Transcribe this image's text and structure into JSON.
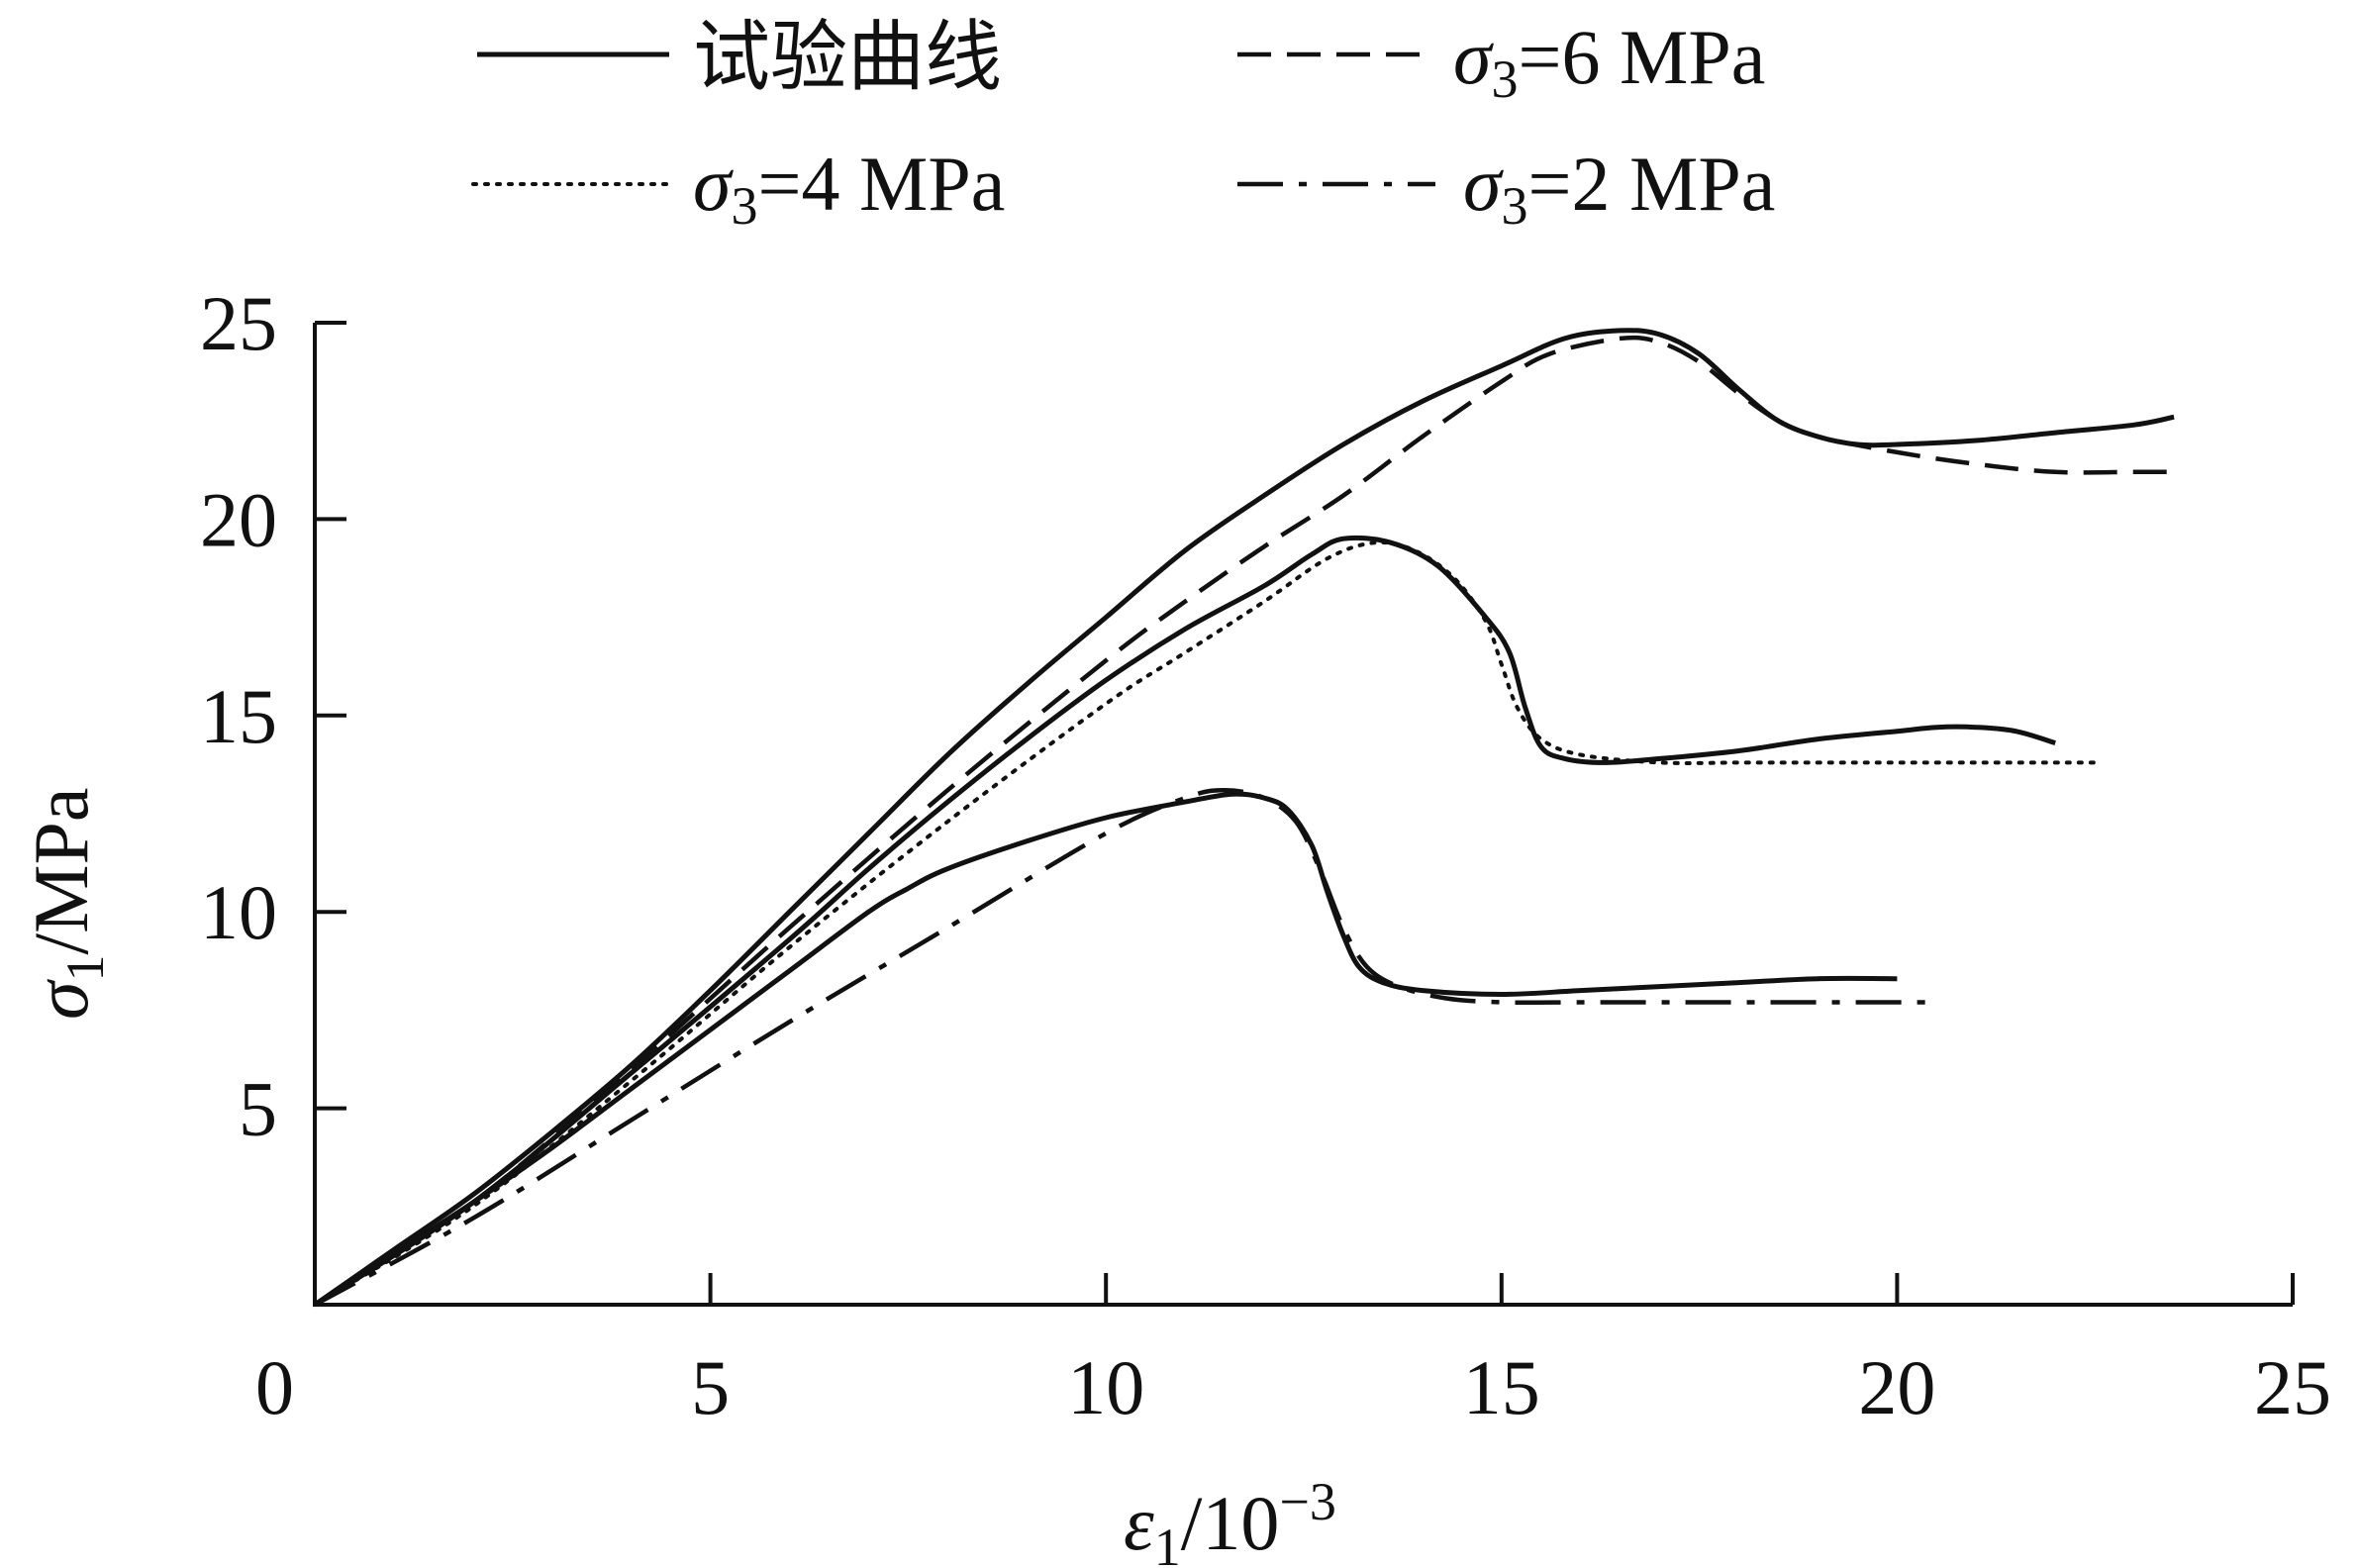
{
  "chart_data": {
    "type": "line",
    "xlim": [
      0,
      25
    ],
    "ylim": [
      0,
      25
    ],
    "x_ticks": [
      0,
      5,
      10,
      15,
      20,
      25
    ],
    "y_ticks": [
      5,
      10,
      15,
      20,
      25
    ],
    "grid": false,
    "legend_position": "top",
    "xlabel": {
      "symbol": "ε",
      "sub": "1",
      "unit": "/10",
      "sup": "−3"
    },
    "ylabel": {
      "symbol": "σ",
      "sub": "1",
      "unit": "/MPa"
    },
    "legend": [
      {
        "key": "test",
        "text": "试验曲线",
        "style": "solid"
      },
      {
        "key": "s6",
        "symbol": "σ",
        "sub": "3",
        "rest": "=6 MPa",
        "style": "dashed"
      },
      {
        "key": "s4",
        "symbol": "σ",
        "sub": "3",
        "rest": "=4 MPa",
        "style": "dotted"
      },
      {
        "key": "s2",
        "symbol": "σ",
        "sub": "3",
        "rest": "=2 MPa",
        "style": "dashdot"
      }
    ],
    "series": [
      {
        "legend_key": "test",
        "style": "solid",
        "points": [
          [
            0,
            0
          ],
          [
            1,
            1.4
          ],
          [
            2,
            2.8
          ],
          [
            3,
            4.4
          ],
          [
            4,
            6.1
          ],
          [
            5,
            8.0
          ],
          [
            6,
            10.0
          ],
          [
            7,
            12.0
          ],
          [
            8,
            14.0
          ],
          [
            9,
            15.8
          ],
          [
            10,
            17.5
          ],
          [
            11,
            19.2
          ],
          [
            12,
            20.6
          ],
          [
            13,
            21.9
          ],
          [
            14,
            23.0
          ],
          [
            15,
            23.9
          ],
          [
            15.8,
            24.6
          ],
          [
            16.5,
            24.8
          ],
          [
            17,
            24.7
          ],
          [
            17.5,
            24.2
          ],
          [
            18,
            23.3
          ],
          [
            18.5,
            22.5
          ],
          [
            19,
            22.1
          ],
          [
            19.5,
            21.9
          ],
          [
            20,
            21.9
          ],
          [
            21,
            22.0
          ],
          [
            22,
            22.2
          ],
          [
            23,
            22.4
          ],
          [
            23.5,
            22.6
          ]
        ]
      },
      {
        "legend_key": "s6",
        "style": "dashed",
        "points": [
          [
            0,
            0
          ],
          [
            2,
            2.6
          ],
          [
            4,
            6.0
          ],
          [
            6,
            9.6
          ],
          [
            8,
            13.1
          ],
          [
            10,
            16.4
          ],
          [
            11,
            17.9
          ],
          [
            12,
            19.3
          ],
          [
            13,
            20.6
          ],
          [
            14,
            22.1
          ],
          [
            15,
            23.5
          ],
          [
            15.6,
            24.2
          ],
          [
            16.5,
            24.6
          ],
          [
            17,
            24.5
          ],
          [
            17.5,
            24.0
          ],
          [
            18,
            23.2
          ],
          [
            18.5,
            22.5
          ],
          [
            19,
            22.1
          ],
          [
            20,
            21.7
          ],
          [
            21,
            21.4
          ],
          [
            22,
            21.2
          ],
          [
            23,
            21.2
          ],
          [
            23.5,
            21.2
          ]
        ]
      },
      {
        "legend_key": "test",
        "style": "solid",
        "points": [
          [
            0,
            0
          ],
          [
            2,
            2.6
          ],
          [
            4,
            5.9
          ],
          [
            6,
            9.3
          ],
          [
            7,
            11.1
          ],
          [
            8,
            12.8
          ],
          [
            9,
            14.4
          ],
          [
            10,
            15.9
          ],
          [
            11,
            17.2
          ],
          [
            12,
            18.3
          ],
          [
            12.6,
            19.1
          ],
          [
            13,
            19.5
          ],
          [
            13.6,
            19.4
          ],
          [
            14.2,
            18.8
          ],
          [
            14.8,
            17.5
          ],
          [
            15.1,
            16.6
          ],
          [
            15.3,
            15.2
          ],
          [
            15.5,
            14.2
          ],
          [
            15.8,
            13.9
          ],
          [
            16.3,
            13.8
          ],
          [
            17,
            13.9
          ],
          [
            18,
            14.1
          ],
          [
            19,
            14.4
          ],
          [
            20,
            14.6
          ],
          [
            20.5,
            14.7
          ],
          [
            21,
            14.7
          ],
          [
            21.5,
            14.6
          ],
          [
            22,
            14.3
          ]
        ]
      },
      {
        "legend_key": "s4",
        "style": "dotted",
        "points": [
          [
            0,
            0
          ],
          [
            2,
            2.5
          ],
          [
            4,
            5.7
          ],
          [
            6,
            9.1
          ],
          [
            8,
            12.3
          ],
          [
            10,
            15.3
          ],
          [
            11,
            16.6
          ],
          [
            12,
            17.9
          ],
          [
            12.8,
            19.0
          ],
          [
            13.4,
            19.4
          ],
          [
            13.9,
            19.2
          ],
          [
            14.4,
            18.5
          ],
          [
            14.8,
            17.4
          ],
          [
            15,
            16.3
          ],
          [
            15.2,
            15.2
          ],
          [
            15.5,
            14.4
          ],
          [
            16,
            14.0
          ],
          [
            17,
            13.8
          ],
          [
            18,
            13.8
          ],
          [
            19,
            13.8
          ],
          [
            20,
            13.8
          ],
          [
            21,
            13.8
          ],
          [
            22,
            13.8
          ],
          [
            22.5,
            13.8
          ]
        ]
      },
      {
        "legend_key": "test",
        "style": "solid",
        "points": [
          [
            0,
            0
          ],
          [
            1,
            1.3
          ],
          [
            2,
            2.6
          ],
          [
            3,
            4.0
          ],
          [
            4,
            5.5
          ],
          [
            5,
            7.0
          ],
          [
            6,
            8.5
          ],
          [
            7,
            10.0
          ],
          [
            7.5,
            10.6
          ],
          [
            8,
            11.1
          ],
          [
            9,
            11.8
          ],
          [
            10,
            12.4
          ],
          [
            11,
            12.8
          ],
          [
            11.6,
            13.0
          ],
          [
            12,
            12.9
          ],
          [
            12.3,
            12.6
          ],
          [
            12.6,
            11.7
          ],
          [
            12.8,
            10.5
          ],
          [
            13,
            9.4
          ],
          [
            13.2,
            8.6
          ],
          [
            13.5,
            8.2
          ],
          [
            14,
            8.0
          ],
          [
            15,
            7.9
          ],
          [
            16,
            8.0
          ],
          [
            17,
            8.1
          ],
          [
            18,
            8.2
          ],
          [
            19,
            8.3
          ],
          [
            20,
            8.3
          ]
        ]
      },
      {
        "legend_key": "s2",
        "style": "dashdot",
        "points": [
          [
            0,
            0
          ],
          [
            2,
            2.2
          ],
          [
            4,
            4.7
          ],
          [
            6,
            7.2
          ],
          [
            8,
            9.6
          ],
          [
            10,
            12.0
          ],
          [
            11,
            12.9
          ],
          [
            11.5,
            13.1
          ],
          [
            12,
            12.9
          ],
          [
            12.4,
            12.3
          ],
          [
            12.7,
            11.1
          ],
          [
            13,
            9.6
          ],
          [
            13.3,
            8.6
          ],
          [
            13.7,
            8.1
          ],
          [
            14.3,
            7.8
          ],
          [
            15,
            7.7
          ],
          [
            16,
            7.7
          ],
          [
            17,
            7.7
          ],
          [
            18,
            7.7
          ],
          [
            19,
            7.7
          ],
          [
            20,
            7.7
          ],
          [
            20.5,
            7.7
          ]
        ]
      }
    ]
  }
}
